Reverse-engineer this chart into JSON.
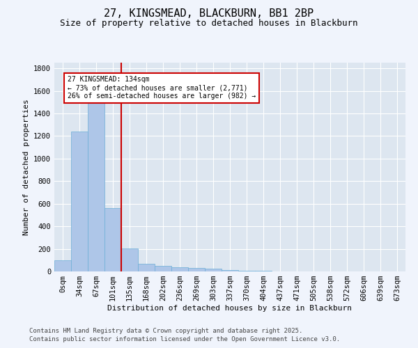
{
  "title": "27, KINGSMEAD, BLACKBURN, BB1 2BP",
  "subtitle": "Size of property relative to detached houses in Blackburn",
  "xlabel": "Distribution of detached houses by size in Blackburn",
  "ylabel": "Number of detached properties",
  "categories": [
    "0sqm",
    "34sqm",
    "67sqm",
    "101sqm",
    "135sqm",
    "168sqm",
    "202sqm",
    "236sqm",
    "269sqm",
    "303sqm",
    "337sqm",
    "370sqm",
    "404sqm",
    "437sqm",
    "471sqm",
    "505sqm",
    "538sqm",
    "572sqm",
    "606sqm",
    "639sqm",
    "673sqm"
  ],
  "values": [
    100,
    1240,
    1510,
    560,
    205,
    65,
    50,
    40,
    30,
    25,
    10,
    5,
    5,
    0,
    0,
    0,
    0,
    0,
    0,
    0,
    0
  ],
  "bar_color": "#aec6e8",
  "bar_edge_color": "#6baed6",
  "vline_color": "#cc0000",
  "annotation_text": "27 KINGSMEAD: 134sqm\n← 73% of detached houses are smaller (2,771)\n26% of semi-detached houses are larger (982) →",
  "annotation_box_facecolor": "#ffffff",
  "annotation_box_edge": "#cc0000",
  "ylim": [
    0,
    1850
  ],
  "yticks": [
    0,
    200,
    400,
    600,
    800,
    1000,
    1200,
    1400,
    1600,
    1800
  ],
  "fig_bg_color": "#f0f4fc",
  "ax_bg_color": "#dde6f0",
  "footer_line1": "Contains HM Land Registry data © Crown copyright and database right 2025.",
  "footer_line2": "Contains public sector information licensed under the Open Government Licence v3.0.",
  "title_fontsize": 11,
  "subtitle_fontsize": 9,
  "axis_label_fontsize": 8,
  "tick_fontsize": 7.5,
  "footer_fontsize": 6.5
}
